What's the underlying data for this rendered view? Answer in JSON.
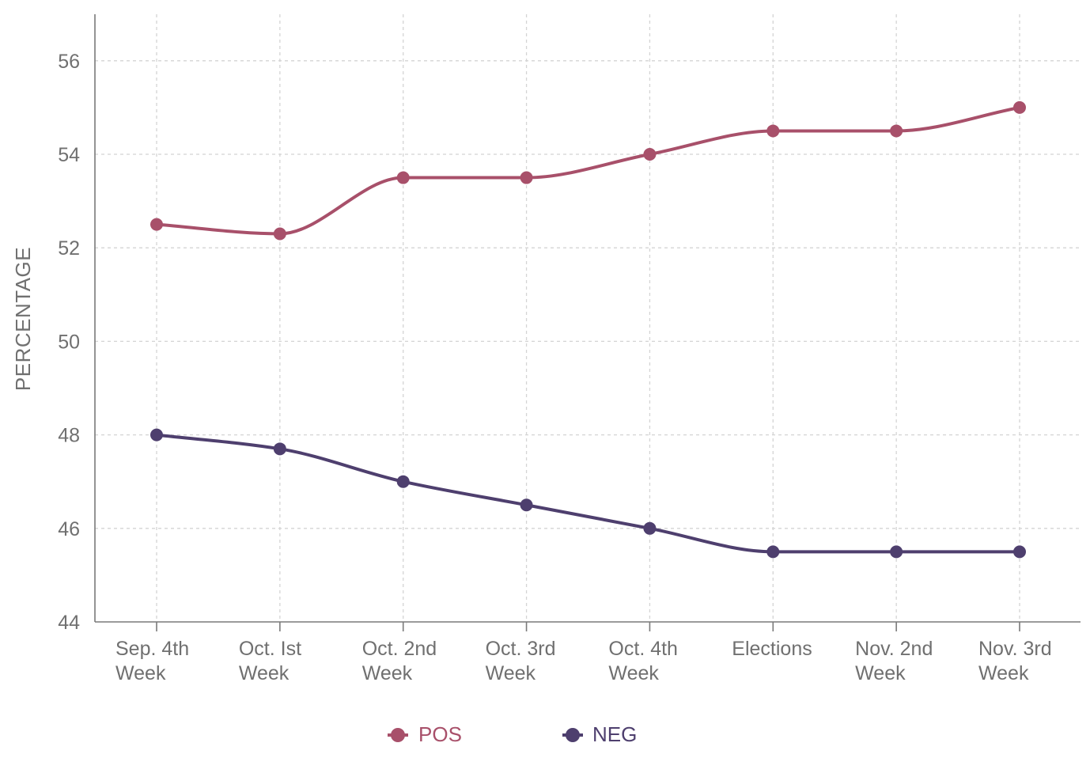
{
  "chart_data": {
    "type": "line",
    "title": "",
    "xlabel": "",
    "ylabel": "PERCENTAGE",
    "categories": [
      [
        "Sep. 4th",
        "Week"
      ],
      [
        "Oct. Ist",
        "Week"
      ],
      [
        "Oct. 2nd",
        "Week"
      ],
      [
        "Oct. 3rd",
        "Week"
      ],
      [
        "Oct. 4th",
        "Week"
      ],
      [
        "Elections"
      ],
      [
        "Nov. 2nd",
        "Week"
      ],
      [
        "Nov. 3rd",
        "Week"
      ]
    ],
    "ylim": [
      44,
      57
    ],
    "yticks": [
      44,
      46,
      48,
      50,
      52,
      54,
      56
    ],
    "grid": true,
    "legend_position": "bottom-center",
    "series": [
      {
        "name": "POS",
        "color": "#a8506a",
        "values": [
          52.5,
          52.3,
          53.5,
          53.5,
          54.0,
          54.5,
          54.5,
          55.0
        ]
      },
      {
        "name": "NEG",
        "color": "#4e3f6e",
        "values": [
          48.0,
          47.7,
          47.0,
          46.5,
          46.0,
          45.5,
          45.5,
          45.5
        ]
      }
    ]
  }
}
